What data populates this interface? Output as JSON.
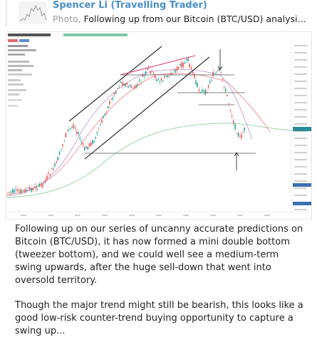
{
  "header": {
    "author": "Spencer Li (Travelling Trader)",
    "kind": "Photo,",
    "subtitle": "Following up from our Bitcoin (BTC/USD) analysis j..."
  },
  "body": {
    "paragraph1": "Following up on our series of uncanny accurate predictions on Bitcoin (BTC/USD), it has now formed a mini double bottom (tweezer bottom), and we could well see a medium-term swing upwards, after the huge sell-down that went into oversold territory.",
    "paragraph2": "Though the major trend might still be bearish, this looks like a good low-risk counter-trend buying opportunity to capture a swing up..."
  },
  "colors": {
    "author": "#4a8fc9",
    "candle_up": "#26a69a",
    "candle_down": "#ef5350",
    "trendline": "#000000",
    "wedge": "#e0306a",
    "ma_long": "#9bd5a7",
    "ma_mid": "#f19aa3",
    "price_tag": "#2a8a9a",
    "axis_tag": "#3b6fb3"
  }
}
